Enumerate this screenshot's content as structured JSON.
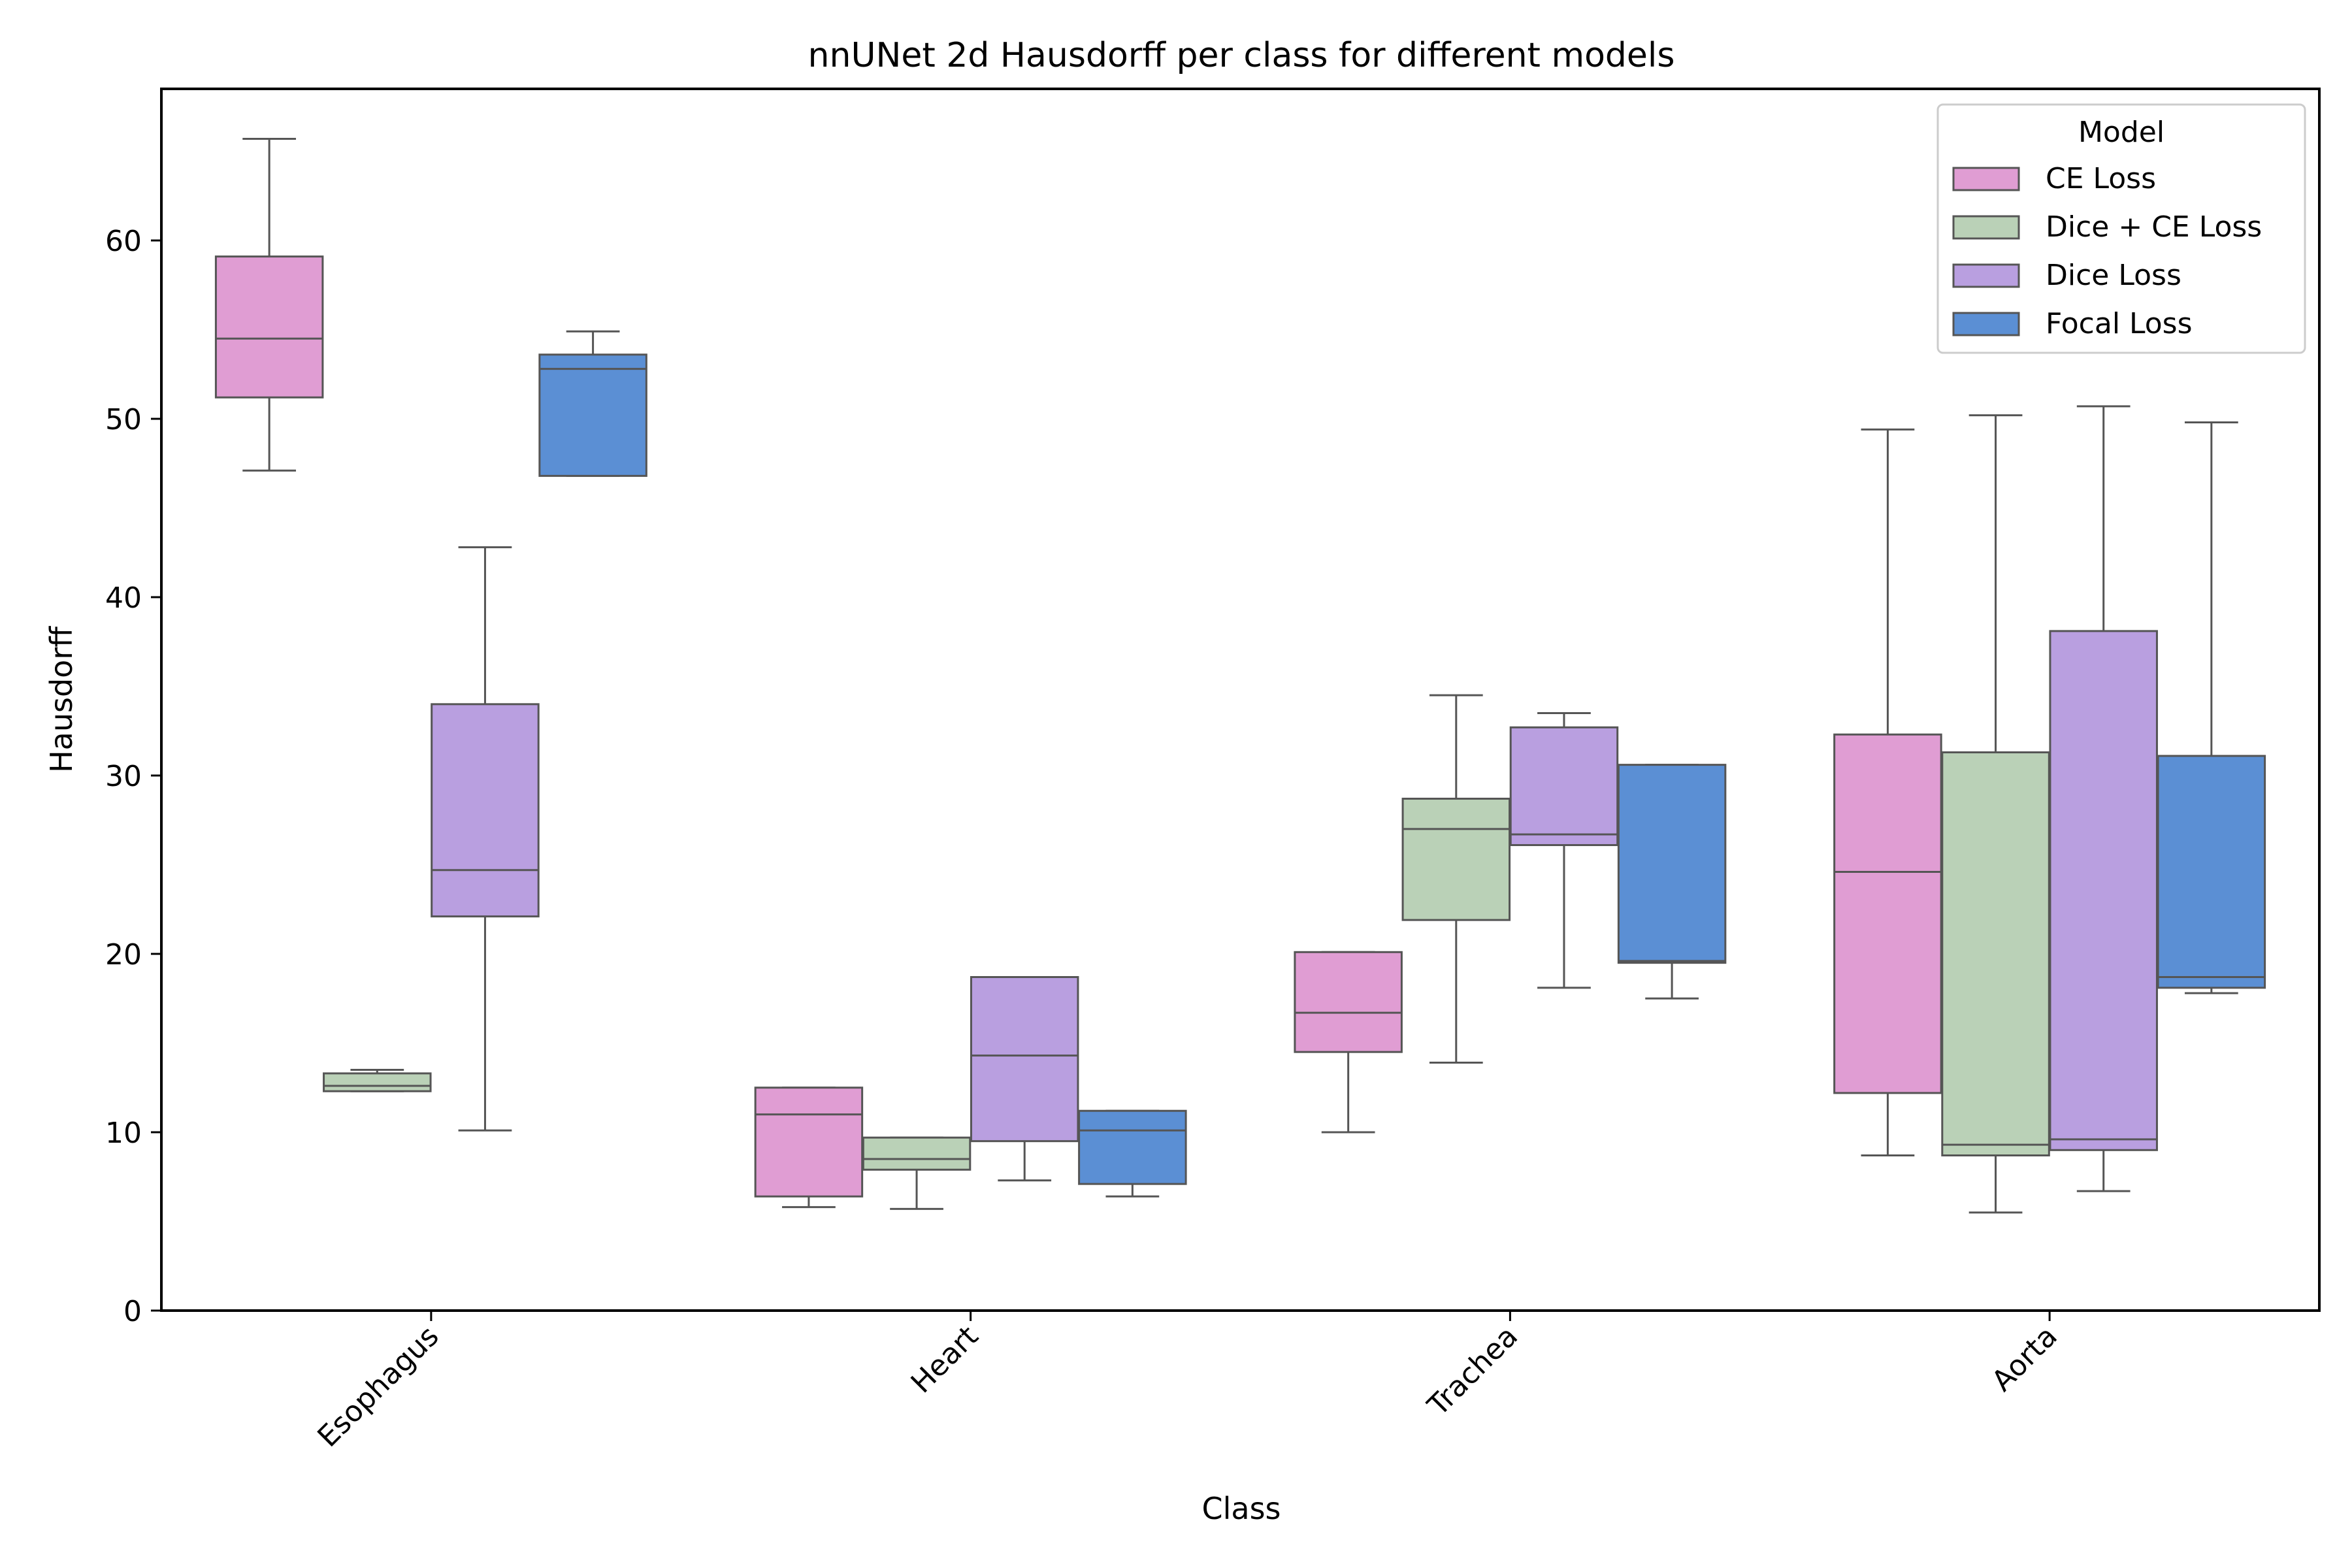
{
  "chart_data": {
    "type": "boxplot",
    "title": "nnUNet 2d Hausdorff per class for different models",
    "xlabel": "Class",
    "ylabel": "Hausdorff",
    "categories": [
      "Esophagus",
      "Heart",
      "Trachea",
      "Aorta"
    ],
    "ylim": [
      0,
      68.5
    ],
    "yticks": [
      0,
      10,
      20,
      30,
      40,
      50,
      60
    ],
    "grid": false,
    "legend": {
      "title": "Model",
      "placement": "top-right"
    },
    "series": [
      {
        "name": "CE Loss",
        "color": "#e09dd3",
        "boxes": [
          {
            "whislo": 47.1,
            "q1": 51.2,
            "med": 54.5,
            "q3": 59.1,
            "whishi": 65.7
          },
          {
            "whislo": 5.8,
            "q1": 6.4,
            "med": 11.0,
            "q3": 12.5,
            "whishi": 12.5
          },
          {
            "whislo": 10.0,
            "q1": 14.5,
            "med": 16.7,
            "q3": 20.1,
            "whishi": 20.1
          },
          {
            "whislo": 8.7,
            "q1": 12.2,
            "med": 24.6,
            "q3": 32.3,
            "whishi": 49.4
          }
        ]
      },
      {
        "name": "Dice + CE Loss",
        "color": "#bad1b7",
        "boxes": [
          {
            "whislo": 12.3,
            "q1": 12.3,
            "med": 12.6,
            "q3": 13.3,
            "whishi": 13.5
          },
          {
            "whislo": 5.7,
            "q1": 7.9,
            "med": 8.5,
            "q3": 9.7,
            "whishi": 9.7
          },
          {
            "whislo": 13.9,
            "q1": 21.9,
            "med": 27.0,
            "q3": 28.7,
            "whishi": 34.5
          },
          {
            "whislo": 5.5,
            "q1": 8.7,
            "med": 9.3,
            "q3": 31.3,
            "whishi": 50.2
          }
        ]
      },
      {
        "name": "Dice Loss",
        "color": "#b99fe0",
        "boxes": [
          {
            "whislo": 10.1,
            "q1": 22.1,
            "med": 24.7,
            "q3": 34.0,
            "whishi": 42.8
          },
          {
            "whislo": 7.3,
            "q1": 9.5,
            "med": 14.3,
            "q3": 18.7,
            "whishi": 18.7
          },
          {
            "whislo": 18.1,
            "q1": 26.1,
            "med": 26.7,
            "q3": 32.7,
            "whishi": 33.5
          },
          {
            "whislo": 6.7,
            "q1": 9.0,
            "med": 9.6,
            "q3": 38.1,
            "whishi": 50.7
          }
        ]
      },
      {
        "name": "Focal Loss",
        "color": "#5b8fd4",
        "boxes": [
          {
            "whislo": 46.8,
            "q1": 46.8,
            "med": 52.8,
            "q3": 53.6,
            "whishi": 54.9
          },
          {
            "whislo": 6.4,
            "q1": 7.1,
            "med": 10.1,
            "q3": 11.2,
            "whishi": 11.2
          },
          {
            "whislo": 17.5,
            "q1": 19.5,
            "med": 19.6,
            "q3": 30.6,
            "whishi": 30.6
          },
          {
            "whislo": 17.8,
            "q1": 18.1,
            "med": 18.7,
            "q3": 31.1,
            "whishi": 49.8
          }
        ]
      }
    ]
  }
}
